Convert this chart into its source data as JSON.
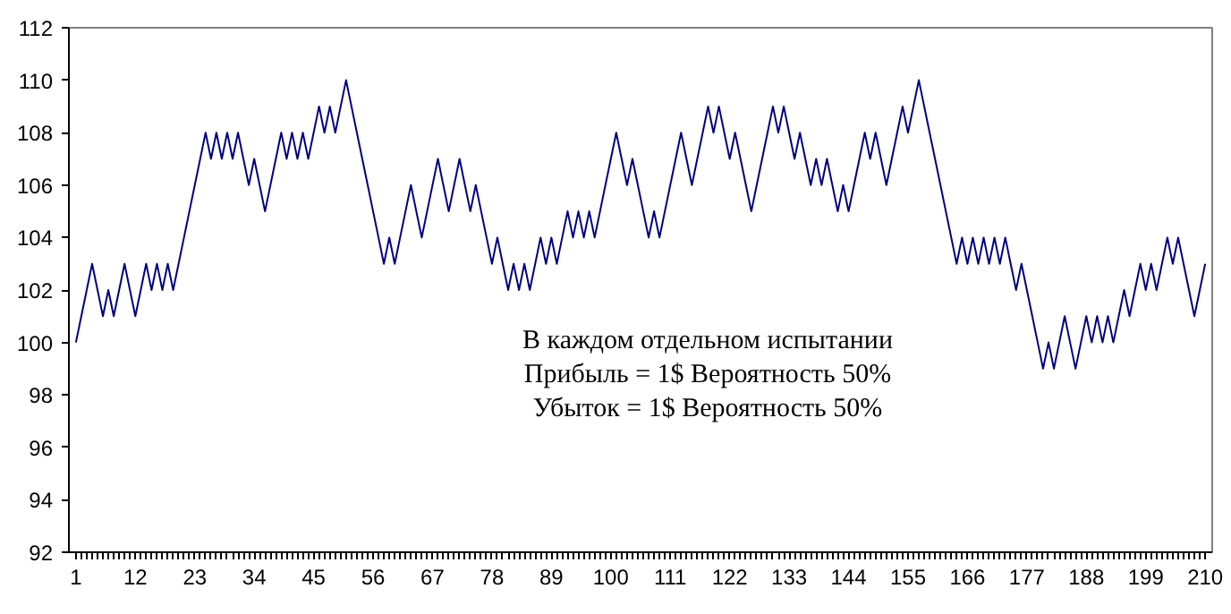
{
  "chart_data": {
    "type": "line",
    "categories": [
      "1",
      null,
      null,
      null,
      null,
      null,
      null,
      null,
      null,
      null,
      null,
      "12",
      null,
      null,
      null,
      null,
      null,
      null,
      null,
      null,
      null,
      null,
      "23",
      null,
      null,
      null,
      null,
      null,
      null,
      null,
      null,
      null,
      null,
      "34",
      null,
      null,
      null,
      null,
      null,
      null,
      null,
      null,
      null,
      null,
      "45",
      null,
      null,
      null,
      null,
      null,
      null,
      null,
      null,
      null,
      null,
      "56",
      null,
      null,
      null,
      null,
      null,
      null,
      null,
      null,
      null,
      null,
      "67",
      null,
      null,
      null,
      null,
      null,
      null,
      null,
      null,
      null,
      null,
      "78",
      null,
      null,
      null,
      null,
      null,
      null,
      null,
      null,
      null,
      null,
      "89",
      null,
      null,
      null,
      null,
      null,
      null,
      null,
      null,
      null,
      null,
      "100",
      null,
      null,
      null,
      null,
      null,
      null,
      null,
      null,
      null,
      null,
      "111",
      null,
      null,
      null,
      null,
      null,
      null,
      null,
      null,
      null,
      null,
      "122",
      null,
      null,
      null,
      null,
      null,
      null,
      null,
      null,
      null,
      null,
      "133",
      null,
      null,
      null,
      null,
      null,
      null,
      null,
      null,
      null,
      null,
      "144",
      null,
      null,
      null,
      null,
      null,
      null,
      null,
      null,
      null,
      null,
      "155",
      null,
      null,
      null,
      null,
      null,
      null,
      null,
      null,
      null,
      null,
      "166",
      null,
      null,
      null,
      null,
      null,
      null,
      null,
      null,
      null,
      null,
      "177",
      null,
      null,
      null,
      null,
      null,
      null,
      null,
      null,
      null,
      null,
      "188",
      null,
      null,
      null,
      null,
      null,
      null,
      null,
      null,
      null,
      null,
      "199",
      null,
      null,
      null,
      null,
      null,
      null,
      null,
      null,
      null,
      null,
      "210"
    ],
    "series": [
      {
        "color": "#000080",
        "values": [
          100,
          101,
          102,
          103,
          102,
          101,
          102,
          101,
          102,
          103,
          102,
          101,
          102,
          103,
          102,
          103,
          102,
          103,
          102,
          103,
          104,
          105,
          106,
          107,
          108,
          107,
          108,
          107,
          108,
          107,
          108,
          107,
          106,
          107,
          106,
          105,
          106,
          107,
          108,
          107,
          108,
          107,
          108,
          107,
          108,
          109,
          108,
          109,
          108,
          109,
          110,
          109,
          108,
          107,
          106,
          105,
          104,
          103,
          104,
          103,
          104,
          105,
          106,
          105,
          104,
          105,
          106,
          107,
          106,
          105,
          106,
          107,
          106,
          105,
          106,
          105,
          104,
          103,
          104,
          103,
          102,
          103,
          102,
          103,
          102,
          103,
          104,
          103,
          104,
          103,
          104,
          105,
          104,
          105,
          104,
          105,
          104,
          105,
          106,
          107,
          108,
          107,
          106,
          107,
          106,
          105,
          104,
          105,
          104,
          105,
          106,
          107,
          108,
          107,
          106,
          107,
          108,
          109,
          108,
          109,
          108,
          107,
          108,
          107,
          106,
          105,
          106,
          107,
          108,
          109,
          108,
          109,
          108,
          107,
          108,
          107,
          106,
          107,
          106,
          107,
          106,
          105,
          106,
          105,
          106,
          107,
          108,
          107,
          108,
          107,
          106,
          107,
          108,
          109,
          108,
          109,
          110,
          109,
          108,
          107,
          106,
          105,
          104,
          103,
          104,
          103,
          104,
          103,
          104,
          103,
          104,
          103,
          104,
          103,
          102,
          103,
          102,
          101,
          100,
          99,
          100,
          99,
          100,
          101,
          100,
          99,
          100,
          101,
          100,
          101,
          100,
          101,
          100,
          101,
          102,
          101,
          102,
          103,
          102,
          103,
          102,
          103,
          104,
          103,
          104,
          103,
          102,
          101,
          102,
          103
        ]
      }
    ],
    "ylim": [
      92,
      112
    ],
    "yticks": [
      92,
      94,
      96,
      98,
      100,
      102,
      104,
      106,
      108,
      110,
      112
    ],
    "grid": false,
    "marker": "none",
    "line_style": "solid",
    "annotations": [
      "В каждом отдельном испытании",
      "Прибыль = 1$ Вероятность 50%",
      "Убыток = 1$ Вероятность 50%"
    ]
  }
}
